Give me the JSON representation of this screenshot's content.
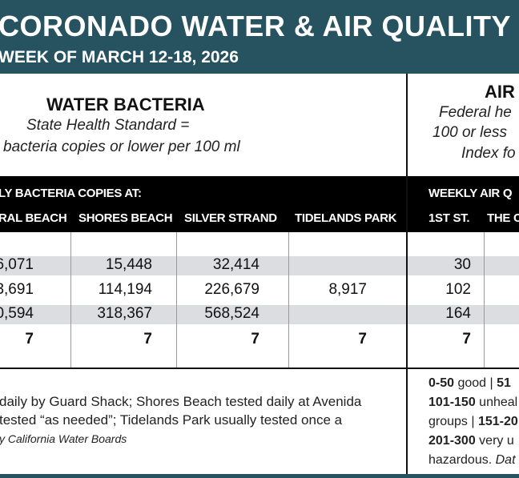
{
  "header": {
    "title": "CORONADO WATER & AIR QUALITY",
    "subtitle": "WEEK OF MARCH 12-18, 2026"
  },
  "water": {
    "heading": "WATER BACTERIA",
    "standard_line1": "State Health Standard  =",
    "standard_line2": "bacteria copies or lower per 100 ml",
    "band_title": "LY BACTERIA COPIES AT:",
    "columns": [
      "RAL BEACH",
      "SHORES BEACH",
      "SILVER STRAND",
      "TIDELANDS PARK"
    ],
    "rows": [
      [
        "6,071",
        "15,448",
        "32,414",
        ""
      ],
      [
        "3,691",
        "114,194",
        "226,679",
        "8,917"
      ],
      [
        "0,594",
        "318,367",
        "568,524",
        ""
      ],
      [
        "7",
        "7",
        "7",
        "7"
      ]
    ],
    "note_line1": "daily by Guard Shack; Shores Beach tested daily at Avenida",
    "note_line2": "tested “as needed”; Tidelands Park usually tested once a",
    "note_line3": "y California Water Boards"
  },
  "air": {
    "heading": "AIR",
    "standard_line1": "Federal he",
    "standard_line2": "100 or less",
    "standard_line3": "Index fo",
    "band_title": "WEEKLY AIR Q",
    "columns": [
      "1ST ST.",
      "THE C"
    ],
    "rows": [
      "30",
      "102",
      "164",
      "7"
    ],
    "key": [
      {
        "range": "0-50",
        "label": " good | ",
        "range2": "51"
      },
      {
        "range": "101-150",
        "label": " unheal"
      },
      {
        "label": "groups | ",
        "range": "151-20"
      },
      {
        "range": "201-300",
        "label": " very u"
      },
      {
        "label": "hazardous. ",
        "italic": "Dat"
      }
    ]
  }
}
